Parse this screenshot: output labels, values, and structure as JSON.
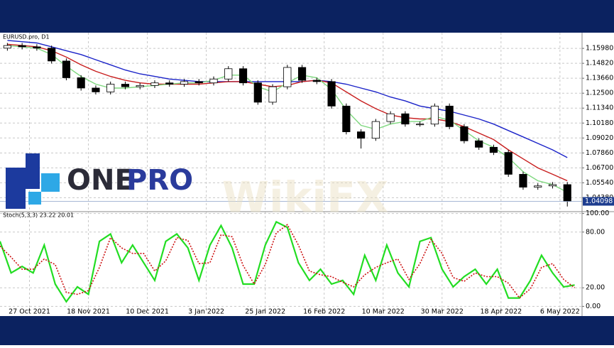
{
  "chart_data": [
    {
      "type": "candlestick",
      "title": "EURUSD.pro, D1",
      "x": [
        -6,
        -2,
        2,
        6,
        10,
        14,
        18,
        22,
        26,
        30,
        34,
        38,
        42,
        46,
        50,
        54,
        58,
        62,
        66,
        70,
        74,
        78,
        82,
        86,
        90,
        94,
        98,
        102,
        106,
        110,
        114,
        118,
        122,
        126,
        130,
        134,
        138,
        142,
        146
      ],
      "open": [
        1.16,
        1.162,
        1.161,
        1.16,
        1.15,
        1.137,
        1.129,
        1.126,
        1.132,
        1.13,
        1.131,
        1.133,
        1.132,
        1.134,
        1.133,
        1.136,
        1.144,
        1.133,
        1.118,
        1.13,
        1.145,
        1.135,
        1.134,
        1.115,
        1.095,
        1.09,
        1.103,
        1.109,
        1.101,
        1.101,
        1.115,
        1.099,
        1.088,
        1.083,
        1.079,
        1.062,
        1.052,
        1.053,
        1.054
      ],
      "high": [
        1.164,
        1.164,
        1.163,
        1.162,
        1.152,
        1.139,
        1.131,
        1.134,
        1.134,
        1.133,
        1.135,
        1.135,
        1.136,
        1.136,
        1.138,
        1.146,
        1.146,
        1.135,
        1.132,
        1.147,
        1.147,
        1.137,
        1.136,
        1.117,
        1.097,
        1.105,
        1.111,
        1.111,
        1.103,
        1.117,
        1.117,
        1.101,
        1.09,
        1.085,
        1.081,
        1.064,
        1.055,
        1.056,
        1.056
      ],
      "low": [
        1.158,
        1.159,
        1.158,
        1.148,
        1.135,
        1.127,
        1.124,
        1.124,
        1.128,
        1.128,
        1.129,
        1.13,
        1.13,
        1.131,
        1.131,
        1.134,
        1.131,
        1.116,
        1.116,
        1.128,
        1.133,
        1.132,
        1.113,
        1.093,
        1.082,
        1.088,
        1.101,
        1.099,
        1.099,
        1.099,
        1.097,
        1.086,
        1.081,
        1.077,
        1.06,
        1.05,
        1.05,
        1.051,
        1.037
      ],
      "close": [
        1.162,
        1.161,
        1.16,
        1.15,
        1.137,
        1.129,
        1.126,
        1.132,
        1.13,
        1.131,
        1.133,
        1.132,
        1.134,
        1.133,
        1.136,
        1.144,
        1.133,
        1.118,
        1.13,
        1.145,
        1.135,
        1.134,
        1.115,
        1.095,
        1.09,
        1.103,
        1.109,
        1.101,
        1.101,
        1.115,
        1.099,
        1.088,
        1.083,
        1.079,
        1.062,
        1.052,
        1.053,
        1.054,
        1.041
      ],
      "up_color": "#ffffff",
      "down_color": "#000000",
      "series": [
        {
          "color": "#1a22c8",
          "values": [
            1.166,
            1.165,
            1.164,
            1.161,
            1.158,
            1.155,
            1.151,
            1.147,
            1.143,
            1.14,
            1.138,
            1.136,
            1.135,
            1.134,
            1.134,
            1.134,
            1.134,
            1.134,
            1.134,
            1.134,
            1.134,
            1.135,
            1.134,
            1.132,
            1.129,
            1.126,
            1.122,
            1.119,
            1.115,
            1.113,
            1.111,
            1.108,
            1.105,
            1.101,
            1.096,
            1.091,
            1.086,
            1.081,
            1.075
          ]
        },
        {
          "color": "#c81e1e",
          "values": [
            1.163,
            1.162,
            1.161,
            1.158,
            1.153,
            1.147,
            1.142,
            1.138,
            1.135,
            1.133,
            1.132,
            1.132,
            1.132,
            1.132,
            1.133,
            1.134,
            1.134,
            1.132,
            1.13,
            1.131,
            1.134,
            1.135,
            1.133,
            1.126,
            1.119,
            1.113,
            1.108,
            1.106,
            1.105,
            1.105,
            1.103,
            1.099,
            1.094,
            1.089,
            1.081,
            1.074,
            1.067,
            1.062,
            1.057
          ]
        },
        {
          "color": "#7fd87f",
          "values": [
            1.162,
            1.161,
            1.16,
            1.155,
            1.146,
            1.138,
            1.132,
            1.129,
            1.129,
            1.13,
            1.131,
            1.132,
            1.133,
            1.133,
            1.135,
            1.139,
            1.139,
            1.13,
            1.126,
            1.133,
            1.139,
            1.137,
            1.128,
            1.112,
            1.1,
            1.097,
            1.101,
            1.103,
            1.103,
            1.107,
            1.104,
            1.096,
            1.088,
            1.083,
            1.075,
            1.064,
            1.057,
            1.054,
            1.048
          ]
        }
      ],
      "last_price": 1.04098,
      "xlim": [
        -8,
        150
      ],
      "ylim": [
        1.033,
        1.172
      ],
      "yticks": [
        {
          "value": 1.1598,
          "label": "1.15980"
        },
        {
          "value": 1.1482,
          "label": "1.14820"
        },
        {
          "value": 1.1366,
          "label": "1.13660"
        },
        {
          "value": 1.125,
          "label": "1.12500"
        },
        {
          "value": 1.1134,
          "label": "1.11340"
        },
        {
          "value": 1.1018,
          "label": "1.10180"
        },
        {
          "value": 1.0902,
          "label": "1.09020"
        },
        {
          "value": 1.0786,
          "label": "1.07860"
        },
        {
          "value": 1.067,
          "label": "1.06700"
        },
        {
          "value": 1.0554,
          "label": "1.05540"
        },
        {
          "value": 1.0438,
          "label": "1.04380"
        }
      ],
      "grid": true
    },
    {
      "type": "line",
      "title": "Stoch(5,3,3) 23.22 20.01",
      "x": [
        -8,
        -5,
        -2,
        1,
        4,
        7,
        10,
        13,
        16,
        19,
        22,
        25,
        28,
        31,
        34,
        37,
        40,
        43,
        46,
        49,
        52,
        55,
        58,
        61,
        64,
        67,
        70,
        73,
        76,
        79,
        82,
        85,
        88,
        91,
        94,
        97,
        100,
        103,
        106,
        109,
        112,
        115,
        118,
        121,
        124,
        127,
        130,
        133,
        136,
        139,
        142,
        145,
        148
      ],
      "series": [
        {
          "color": "#22dd22",
          "values": [
            70,
            36,
            43,
            36,
            66,
            24,
            5,
            21,
            13,
            70,
            78,
            47,
            66,
            47,
            28,
            70,
            78,
            63,
            28,
            66,
            87,
            63,
            24,
            24,
            66,
            91,
            85,
            47,
            28,
            40,
            24,
            28,
            13,
            55,
            28,
            66,
            36,
            21,
            70,
            74,
            40,
            21,
            32,
            40,
            24,
            40,
            9,
            9,
            28,
            55,
            36,
            21,
            23
          ]
        },
        {
          "color": "#cc1111",
          "dashed": true,
          "values": [
            65,
            53,
            40,
            40,
            51,
            45,
            15,
            13,
            17,
            42,
            74,
            63,
            57,
            57,
            38,
            49,
            74,
            71,
            46,
            47,
            77,
            75,
            44,
            24,
            45,
            79,
            88,
            66,
            38,
            34,
            32,
            26,
            21,
            34,
            42,
            47,
            51,
            29,
            46,
            72,
            57,
            31,
            27,
            36,
            32,
            32,
            25,
            9,
            19,
            42,
            46,
            29,
            20
          ]
        }
      ],
      "xlim": [
        -8,
        150
      ],
      "ylim": [
        -2,
        102
      ],
      "yticks": [
        {
          "value": 100,
          "label": "100.00"
        },
        {
          "value": 80,
          "label": "80.00"
        },
        {
          "value": 20,
          "label": "20.00"
        },
        {
          "value": 0,
          "label": "0.00"
        }
      ],
      "xticks": [
        {
          "value": 0,
          "label": "27 Oct 2021"
        },
        {
          "value": 16,
          "label": "18 Nov 2021"
        },
        {
          "value": 32,
          "label": "10 Dec 2021"
        },
        {
          "value": 48,
          "label": "3 Jan 2022"
        },
        {
          "value": 64,
          "label": "25 Jan 2022"
        },
        {
          "value": 80,
          "label": "16 Feb 2022"
        },
        {
          "value": 96,
          "label": "10 Mar 2022"
        },
        {
          "value": 112,
          "label": "30 Mar 2022"
        },
        {
          "value": 128,
          "label": "18 Apr 2022"
        },
        {
          "value": 144,
          "label": "6 May 2022"
        }
      ],
      "grid": true
    }
  ],
  "logo": {
    "part1": "ONE",
    "part2": "PRO"
  },
  "watermark": "WikiFX"
}
